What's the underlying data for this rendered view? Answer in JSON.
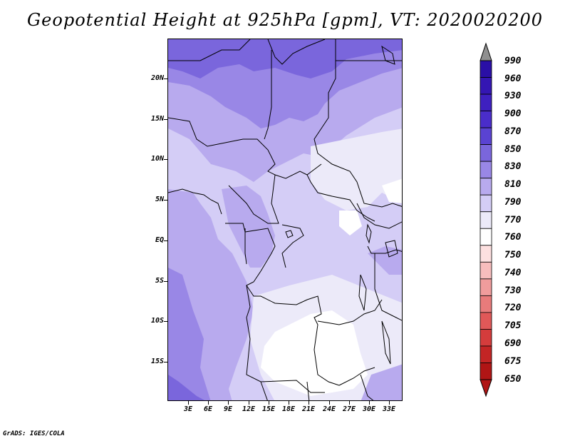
{
  "title": "Geopotential Height at 925hPa [gpm], VT: 2020020200",
  "footer": "GrADS: IGES/COLA",
  "map": {
    "lat_labels": [
      "20N",
      "15N",
      "10N",
      "5N",
      "EQ",
      "5S",
      "10S",
      "15S"
    ],
    "lon_labels": [
      "3E",
      "6E",
      "9E",
      "12E",
      "15E",
      "18E",
      "21E",
      "24E",
      "27E",
      "30E",
      "33E"
    ]
  },
  "colorbar": {
    "levels": [
      "990",
      "960",
      "930",
      "900",
      "870",
      "850",
      "830",
      "810",
      "790",
      "770",
      "760",
      "750",
      "740",
      "730",
      "720",
      "705",
      "690",
      "675",
      "650"
    ],
    "colors": [
      "#2a0fa6",
      "#3416b3",
      "#3e20c0",
      "#4a2dca",
      "#5a43d2",
      "#7a66dc",
      "#9987e6",
      "#b8aaee",
      "#d4cdf6",
      "#eceaf9",
      "#ffffff",
      "#fde0e0",
      "#f7bdbd",
      "#f09c9c",
      "#e87b7b",
      "#e05858",
      "#d43c3c",
      "#c32525",
      "#b01515"
    ]
  }
}
